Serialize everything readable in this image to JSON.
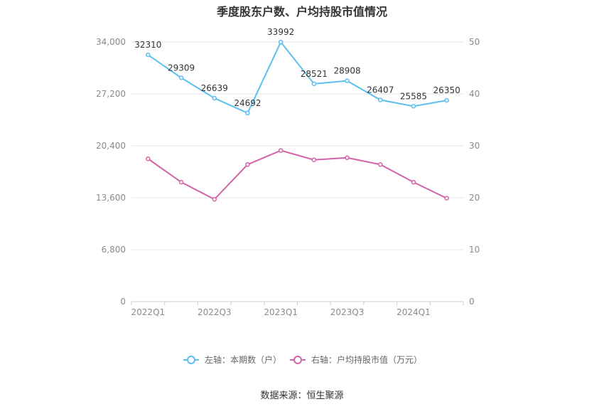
{
  "chart_data": {
    "type": "line",
    "title": "季度股东户数、户均持股市值情况",
    "categories": [
      "2022Q1",
      "2022Q2",
      "2022Q3",
      "2022Q4",
      "2023Q1",
      "2023Q2",
      "2023Q3",
      "2023Q4",
      "2024Q1",
      "2024Q2"
    ],
    "x_tick_labels": [
      "2022Q1",
      "2022Q3",
      "2023Q1",
      "2023Q3",
      "2024Q1"
    ],
    "y_left": {
      "min": 0,
      "max": 34000,
      "ticks": [
        "0",
        "6,800",
        "13,600",
        "20,400",
        "27,200",
        "34,000"
      ]
    },
    "y_right": {
      "min": 0,
      "max": 50,
      "ticks": [
        "0",
        "10",
        "20",
        "30",
        "40",
        "50"
      ]
    },
    "grid": true,
    "legend_position": "bottom",
    "series": [
      {
        "name": "左轴：本期数（户）",
        "axis": "left",
        "color": "#5bc0f0",
        "values": [
          32310,
          29309,
          26639,
          24692,
          33992,
          28521,
          28908,
          26407,
          25585,
          26350
        ],
        "labels": [
          "32310",
          "29309",
          "26639",
          "24692",
          "33992",
          "28521",
          "28908",
          "26407",
          "25585",
          "26350"
        ]
      },
      {
        "name": "右轴：户均持股市值（万元）",
        "axis": "right",
        "color": "#d263a8",
        "values": [
          27.5,
          23.0,
          19.7,
          26.4,
          29.1,
          27.3,
          27.7,
          26.4,
          23.0,
          19.9
        ]
      }
    ]
  },
  "source": "数据来源：恒生聚源"
}
